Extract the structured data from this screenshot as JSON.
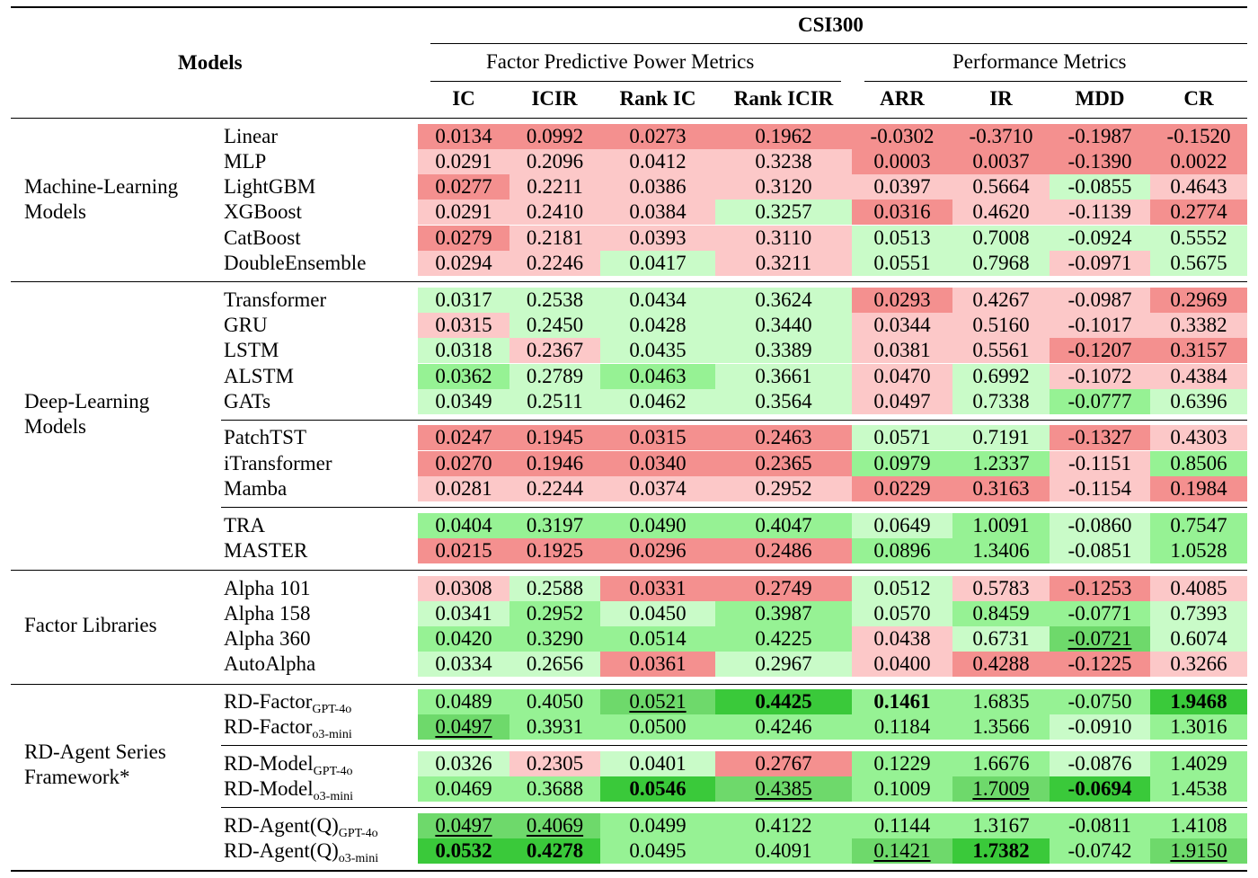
{
  "header": {
    "dataset": "CSI300",
    "models_label": "Models",
    "group1": "Factor Predictive Power Metrics",
    "group2": "Performance Metrics",
    "columns": [
      "IC",
      "ICIR",
      "Rank IC",
      "Rank ICIR",
      "ARR",
      "IR",
      "MDD",
      "CR"
    ]
  },
  "palette": {
    "R": "#f4908f",
    "r": "#fcc8c8",
    "g": "#c9fbc8",
    "G": "#96f294",
    "D": "#6ed96b",
    "K": "#3ac93a"
  },
  "sections": [
    {
      "label": "Machine-Learning\nModels",
      "groups": [
        [
          {
            "model": "Linear",
            "values": [
              "0.0134",
              "0.0992",
              "0.0273",
              "0.1962",
              "-0.0302",
              "-0.3710",
              "-0.1987",
              "-0.1520"
            ],
            "colors": "RRRRRRRR"
          },
          {
            "model": "MLP",
            "values": [
              "0.0291",
              "0.2096",
              "0.0412",
              "0.3238",
              "0.0003",
              "0.0037",
              "-0.1390",
              "0.0022"
            ],
            "colors": "rrrrRRRR"
          },
          {
            "model": "LightGBM",
            "values": [
              "0.0277",
              "0.2211",
              "0.0386",
              "0.3120",
              "0.0397",
              "0.5664",
              "-0.0855",
              "0.4643"
            ],
            "colors": "Rrrrrrgr"
          },
          {
            "model": "XGBoost",
            "values": [
              "0.0291",
              "0.2410",
              "0.0384",
              "0.3257",
              "0.0316",
              "0.4620",
              "-0.1139",
              "0.2774"
            ],
            "colors": "rrrgRrrR"
          },
          {
            "model": "CatBoost",
            "values": [
              "0.0279",
              "0.2181",
              "0.0393",
              "0.3110",
              "0.0513",
              "0.7008",
              "-0.0924",
              "0.5552"
            ],
            "colors": "Rrrrgggg"
          },
          {
            "model": "DoubleEnsemble",
            "values": [
              "0.0294",
              "0.2246",
              "0.0417",
              "0.3211",
              "0.0551",
              "0.7968",
              "-0.0971",
              "0.5675"
            ],
            "colors": "rrgrggrg"
          }
        ]
      ]
    },
    {
      "label": "Deep-Learning\nModels",
      "groups": [
        [
          {
            "model": "Transformer",
            "values": [
              "0.0317",
              "0.2538",
              "0.0434",
              "0.3624",
              "0.0293",
              "0.4267",
              "-0.0987",
              "0.2969"
            ],
            "colors": "ggggRrrR"
          },
          {
            "model": "GRU",
            "values": [
              "0.0315",
              "0.2450",
              "0.0428",
              "0.3440",
              "0.0344",
              "0.5160",
              "-0.1017",
              "0.3382"
            ],
            "colors": "rgggrrrr"
          },
          {
            "model": "LSTM",
            "values": [
              "0.0318",
              "0.2367",
              "0.0435",
              "0.3389",
              "0.0381",
              "0.5561",
              "-0.1207",
              "0.3157"
            ],
            "colors": "grggrrRR"
          },
          {
            "model": "ALSTM",
            "values": [
              "0.0362",
              "0.2789",
              "0.0463",
              "0.3661",
              "0.0470",
              "0.6992",
              "-0.1072",
              "0.4384"
            ],
            "colors": "GgGgrgrr"
          },
          {
            "model": "GATs",
            "values": [
              "0.0349",
              "0.2511",
              "0.0462",
              "0.3564",
              "0.0497",
              "0.7338",
              "-0.0777",
              "0.6396"
            ],
            "colors": "ggggrgGg"
          }
        ],
        [
          {
            "model": "PatchTST",
            "values": [
              "0.0247",
              "0.1945",
              "0.0315",
              "0.2463",
              "0.0571",
              "0.7191",
              "-0.1327",
              "0.4303"
            ],
            "colors": "RRRRggRr"
          },
          {
            "model": "iTransformer",
            "values": [
              "0.0270",
              "0.1946",
              "0.0340",
              "0.2365",
              "0.0979",
              "1.2337",
              "-0.1151",
              "0.8506"
            ],
            "colors": "RRRRGGrG"
          },
          {
            "model": "Mamba",
            "values": [
              "0.0281",
              "0.2244",
              "0.0374",
              "0.2952",
              "0.0229",
              "0.3163",
              "-0.1154",
              "0.1984"
            ],
            "colors": "rrrrRRrR"
          }
        ],
        [
          {
            "model": "TRA",
            "values": [
              "0.0404",
              "0.3197",
              "0.0490",
              "0.4047",
              "0.0649",
              "1.0091",
              "-0.0860",
              "0.7547"
            ],
            "colors": "GGGGgGgG"
          },
          {
            "model": "MASTER",
            "values": [
              "0.0215",
              "0.1925",
              "0.0296",
              "0.2486",
              "0.0896",
              "1.3406",
              "-0.0851",
              "1.0528"
            ],
            "colors": "RRRRGGgG"
          }
        ]
      ]
    },
    {
      "label": "Factor Libraries",
      "groups": [
        [
          {
            "model": "Alpha 101",
            "values": [
              "0.0308",
              "0.2588",
              "0.0331",
              "0.2749",
              "0.0512",
              "0.5783",
              "-0.1253",
              "0.4085"
            ],
            "colors": "rgRRgrRr"
          },
          {
            "model": "Alpha 158",
            "values": [
              "0.0341",
              "0.2952",
              "0.0450",
              "0.3987",
              "0.0570",
              "0.8459",
              "-0.0771",
              "0.7393"
            ],
            "colors": "gGgGgGGg"
          },
          {
            "model": "Alpha 360",
            "values": [
              "0.0420",
              "0.3290",
              "0.0514",
              "0.4225",
              "0.0438",
              "0.6731",
              "-0.0721",
              "0.6074"
            ],
            "colors": "GGGGrgDg",
            "underline": [
              6
            ]
          },
          {
            "model": "AutoAlpha",
            "values": [
              "0.0334",
              "0.2656",
              "0.0361",
              "0.2967",
              "0.0400",
              "0.4288",
              "-0.1225",
              "0.3266"
            ],
            "colors": "ggRgrRRr"
          }
        ]
      ]
    },
    {
      "label": "RD-Agent Series\nFramework*",
      "groups": [
        [
          {
            "model": "RD-Factor",
            "sub": "GPT-4o",
            "values": [
              "0.0489",
              "0.4050",
              "0.0521",
              "0.4425",
              "0.1461",
              "1.6835",
              "-0.0750",
              "1.9468"
            ],
            "colors": "GGDKGGGK",
            "bold": [
              3,
              4,
              7
            ],
            "underline": [
              2
            ]
          },
          {
            "model": "RD-Factor",
            "sub": "o3-mini",
            "values": [
              "0.0497",
              "0.3931",
              "0.0500",
              "0.4246",
              "0.1184",
              "1.3566",
              "-0.0910",
              "1.3016"
            ],
            "colors": "DGGGGGgG",
            "underline": [
              0
            ]
          }
        ],
        [
          {
            "model": "RD-Model",
            "sub": "GPT-4o",
            "values": [
              "0.0326",
              "0.2305",
              "0.0401",
              "0.2767",
              "0.1229",
              "1.6676",
              "-0.0876",
              "1.4029"
            ],
            "colors": "grgRGGgG"
          },
          {
            "model": "RD-Model",
            "sub": "o3-mini",
            "values": [
              "0.0469",
              "0.3688",
              "0.0546",
              "0.4385",
              "0.1009",
              "1.7009",
              "-0.0694",
              "1.4538"
            ],
            "colors": "GGKDGDKG",
            "bold": [
              2,
              6
            ],
            "underline": [
              3,
              5
            ]
          }
        ],
        [
          {
            "model": "RD-Agent(Q)",
            "sub": "GPT-4o",
            "values": [
              "0.0497",
              "0.4069",
              "0.0499",
              "0.4122",
              "0.1144",
              "1.3167",
              "-0.0811",
              "1.4108"
            ],
            "colors": "DDGGGGGG",
            "underline": [
              0,
              1
            ]
          },
          {
            "model": "RD-Agent(Q)",
            "sub": "o3-mini",
            "values": [
              "0.0532",
              "0.4278",
              "0.0495",
              "0.4091",
              "0.1421",
              "1.7382",
              "-0.0742",
              "1.9150"
            ],
            "colors": "KKGGDKGD",
            "bold": [
              0,
              1,
              5
            ],
            "underline": [
              4,
              7
            ]
          }
        ]
      ]
    }
  ]
}
